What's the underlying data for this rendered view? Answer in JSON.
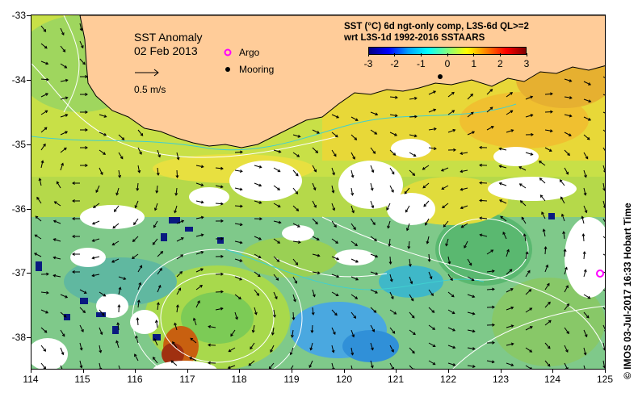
{
  "map": {
    "title": "SST Anomaly",
    "date": "02 Feb 2013",
    "scale_label": "0.5 m/s",
    "legend": {
      "argo_label": "Argo",
      "mooring_label": "Mooring",
      "argo_color": "#ff00ff",
      "mooring_color": "#000000"
    },
    "colorbar": {
      "title_line1": "SST (°C) 6d ngt-only comp, L3S-6d QL>=2",
      "title_line2": "wrt L3S-1d 1992-2016 SSTAARS",
      "ticks": [
        "-3",
        "-2",
        "-1",
        "0",
        "1",
        "2",
        "3"
      ],
      "range": [
        -3,
        3
      ],
      "colors": [
        "#000080",
        "#0000ff",
        "#00a0ff",
        "#00ffff",
        "#80ff80",
        "#ffff00",
        "#ff8000",
        "#ff0000",
        "#800000"
      ]
    },
    "axes": {
      "lon_ticks": [
        "114",
        "115",
        "116",
        "117",
        "118",
        "119",
        "120",
        "121",
        "122",
        "123",
        "124",
        "125"
      ],
      "lat_ticks": [
        "-33",
        "-34",
        "-35",
        "-36",
        "-37",
        "-38"
      ],
      "lon_range": [
        114,
        125
      ],
      "lat_range": [
        -38.5,
        -33
      ]
    },
    "land_color": "#ffcc99",
    "credit": "© IMOS 03-Jul-2017 16:33 Hobart Time"
  }
}
